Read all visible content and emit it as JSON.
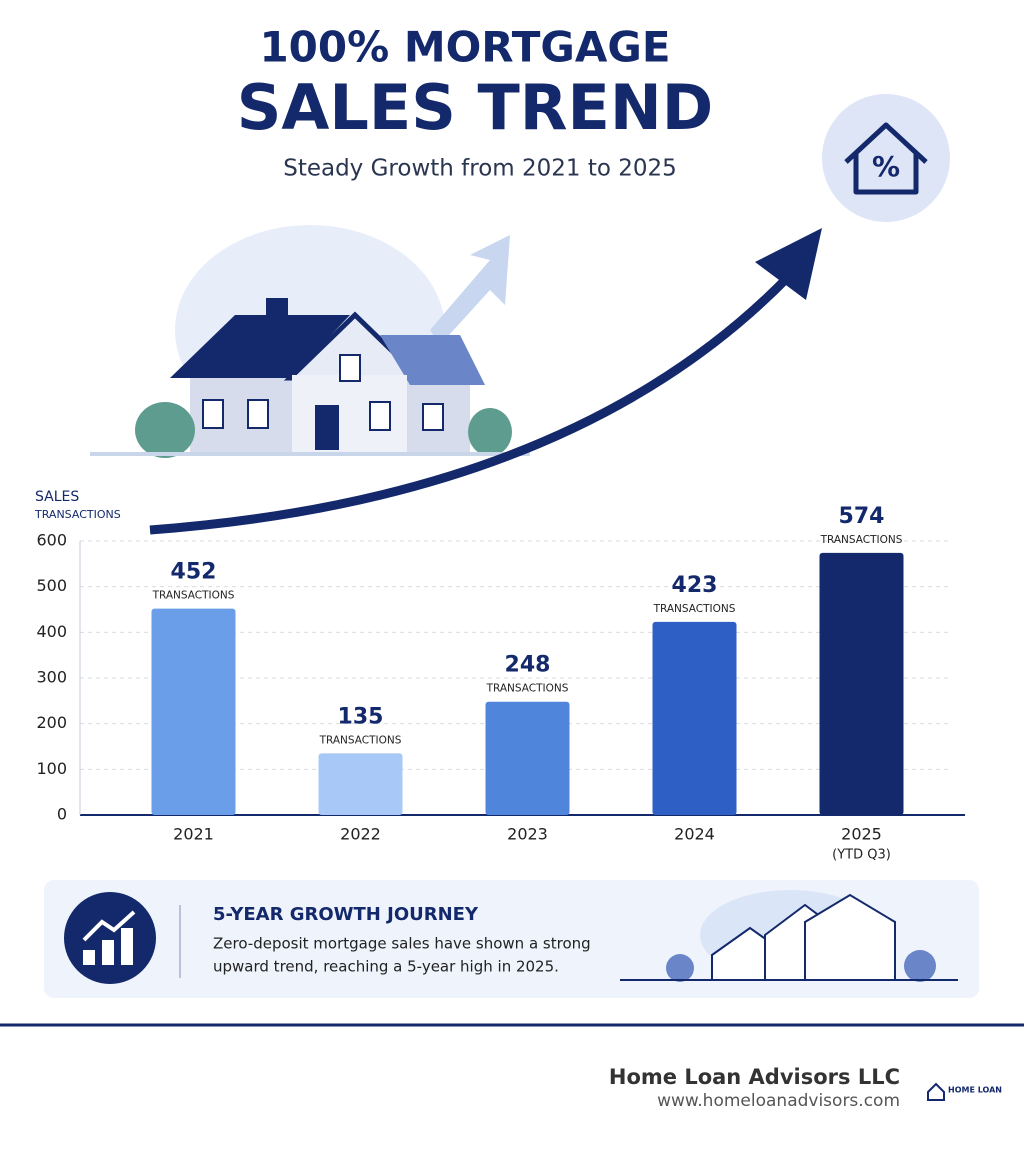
{
  "chart_data": {
    "type": "bar",
    "title_lines": [
      "100% MORTGAGE",
      "SALES TREND"
    ],
    "subtitle": "Steady Growth from 2021 to 2025",
    "ylabel_lines": [
      "SALES",
      "TRANSACTIONS"
    ],
    "categories": [
      "2021",
      "2022",
      "2023",
      "2024",
      "2025"
    ],
    "category_note": "(YTD Q3)",
    "values": [
      452,
      135,
      248,
      423,
      574
    ],
    "value_unit": "TRANSACTIONS",
    "colors": [
      "#6a9ee8",
      "#a8c8f8",
      "#4f86dc",
      "#2d5fc4",
      "#13296b"
    ],
    "ylim": [
      0,
      600
    ],
    "yticks": [
      0,
      100,
      200,
      300,
      400,
      500,
      600
    ],
    "grid": true
  },
  "info": {
    "heading": "5-YEAR GROWTH JOURNEY",
    "text_lines": [
      "Zero-deposit mortgage sales have shown a strong",
      "upward trend, reaching a 5-year high in 2025."
    ]
  },
  "footer": {
    "company": "Home Loan Advisors LLC",
    "website": "www.homeloanadvisors.com",
    "logo": "HOME LOAN"
  }
}
